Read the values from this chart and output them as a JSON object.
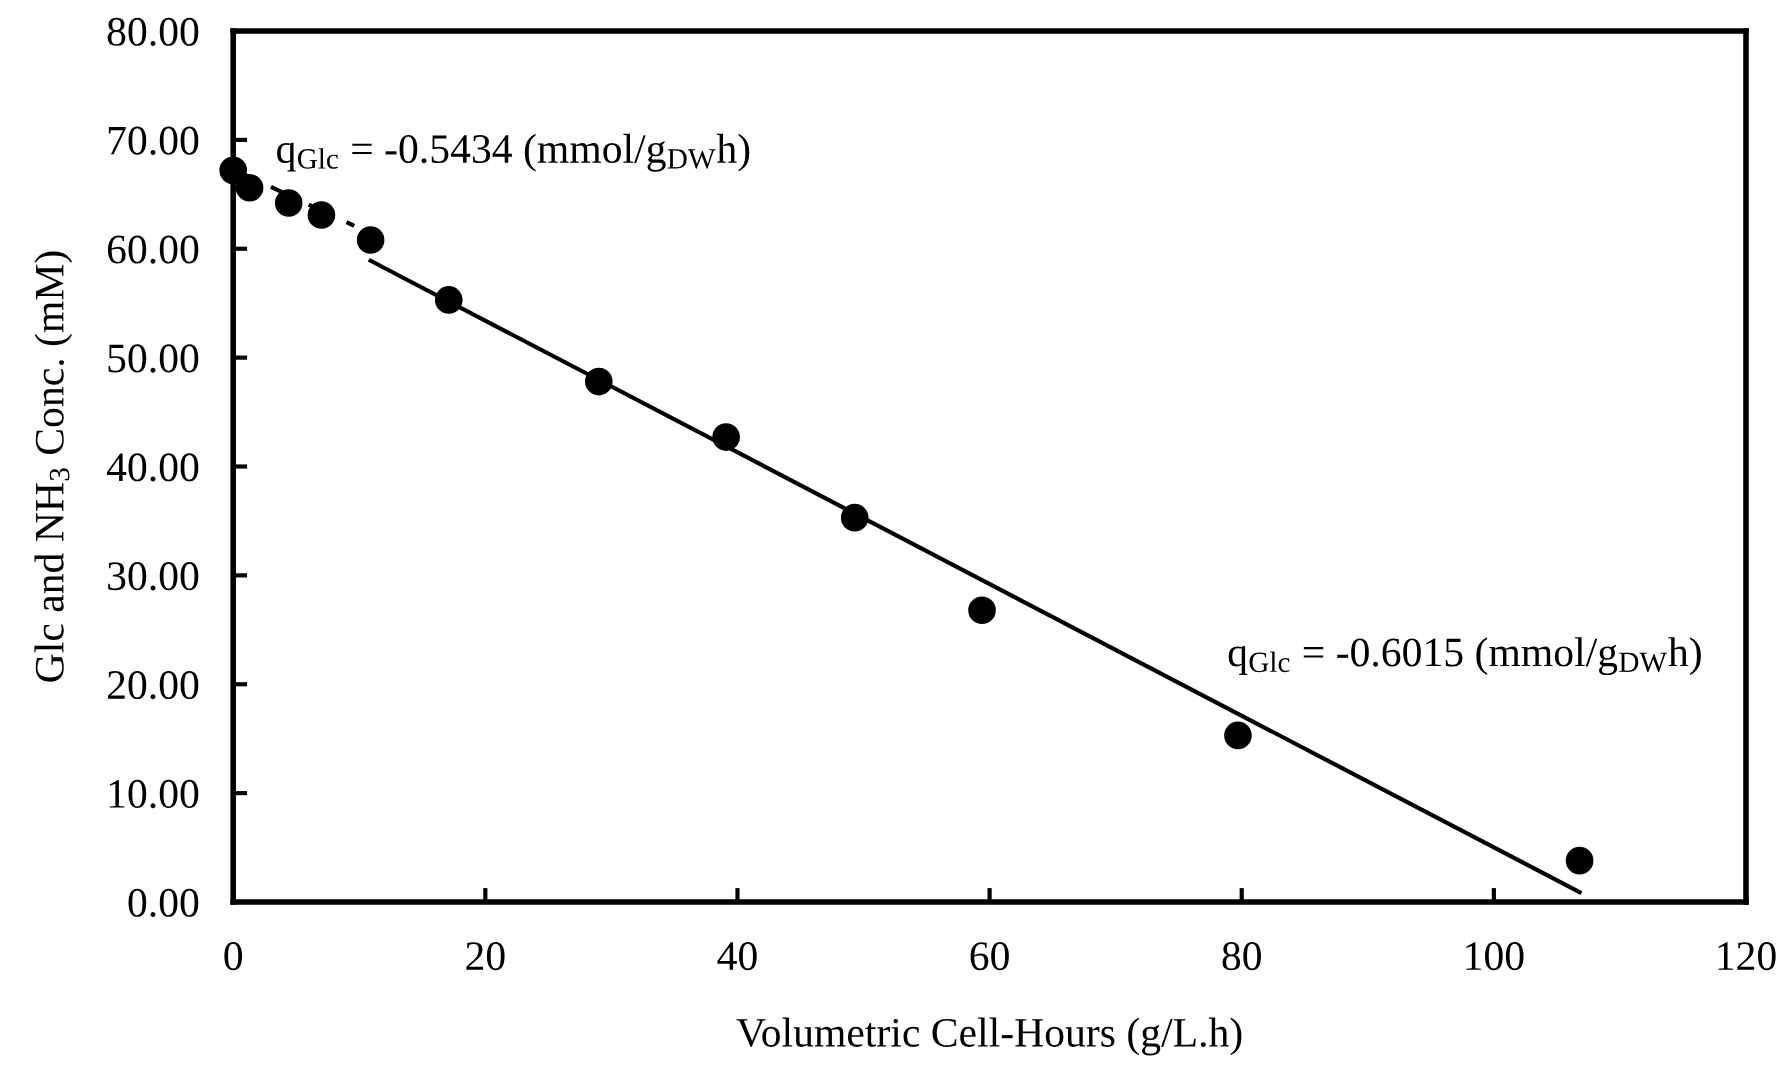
{
  "chart_data": {
    "type": "scatter",
    "xlabel": "Volumetric Cell-Hours (g/L.h)",
    "ylabel": "Glc and NH$_{3}$ Conc. (mM)",
    "series": [
      {
        "color": "#000000",
        "marker": "circle",
        "x": [
          0,
          1.3,
          4.4,
          7.0,
          10.9,
          17.1,
          29.0,
          39.1,
          49.3,
          59.4,
          79.7,
          106.8
        ],
        "values": [
          67.2,
          65.6,
          64.2,
          63.1,
          60.8,
          55.3,
          47.8,
          42.7,
          35.3,
          26.8,
          15.3,
          3.8
        ]
      },
      {
        "type": "line",
        "color": "#000000",
        "line_style": "dashed",
        "marker": "none",
        "x": [
          0,
          9.6
        ],
        "values": [
          67.3,
          62.1
        ]
      },
      {
        "type": "line",
        "color": "#000000",
        "line_style": "solid",
        "marker": "none",
        "x": [
          10.9,
          106.8
        ],
        "values": [
          58.9,
          0.9
        ]
      }
    ],
    "annotations": [
      "q$_{Glc}$ = -0.5434 (mmol/g$_{DW}$h)",
      "q$_{Glc}$ = -0.6015 (mmol/g$_{DW}$h)"
    ],
    "xlim": [
      0,
      120
    ],
    "xticks": [
      0,
      20,
      40,
      60,
      80,
      100,
      120
    ],
    "ylim": [
      0,
      80
    ],
    "yticks": [
      {
        "value": 0,
        "label": "0.00"
      },
      {
        "value": 10,
        "label": "10.00"
      },
      {
        "value": 20,
        "label": "20.00"
      },
      {
        "value": 30,
        "label": "30.00"
      },
      {
        "value": 40,
        "label": "40.00"
      },
      {
        "value": 50,
        "label": "50.00"
      },
      {
        "value": 60,
        "label": "60.00"
      },
      {
        "value": 70,
        "label": "70.00"
      },
      {
        "value": 80,
        "label": "80.00"
      }
    ],
    "grid": false,
    "legend": false
  }
}
